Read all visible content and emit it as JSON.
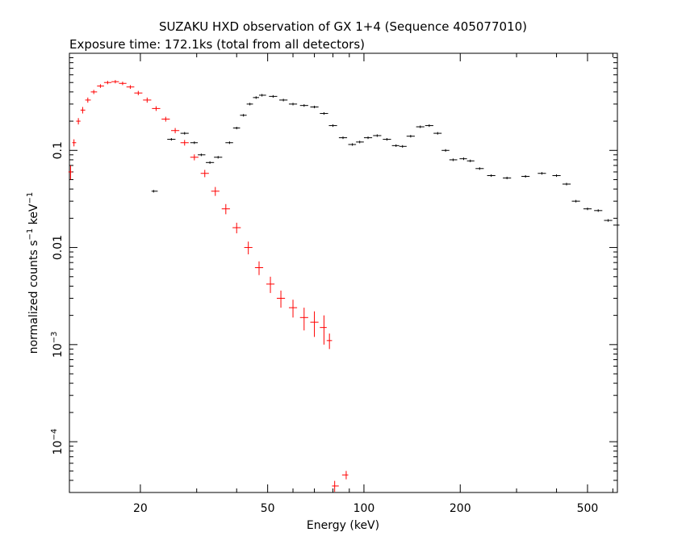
{
  "chart_data": {
    "type": "scatter",
    "title": "SUZAKU HXD observation of GX 1+4 (Sequence 405077010)",
    "subtitle": "Exposure time: 172.1ks (total from all detectors)",
    "xlabel": "Energy (keV)",
    "ylabel_parts": {
      "base": "normalized counts s",
      "exp1": "−1",
      "mid": " keV",
      "exp2": "−1"
    },
    "x_scale": "log",
    "y_scale": "log",
    "xlim": [
      12,
      620
    ],
    "ylim": [
      3e-05,
      1.0
    ],
    "grid": false,
    "x_ticks": [
      {
        "value": 20,
        "label": "20"
      },
      {
        "value": 50,
        "label": "50"
      },
      {
        "value": 100,
        "label": "100"
      },
      {
        "value": 200,
        "label": "200"
      },
      {
        "value": 500,
        "label": "500"
      }
    ],
    "y_ticks": [
      {
        "value": 0.1,
        "label": "0.1"
      },
      {
        "value": 0.01,
        "label": "0.01"
      },
      {
        "value": 0.001,
        "label": "10",
        "exp": "−3"
      },
      {
        "value": 0.0001,
        "label": "10",
        "exp": "−4"
      }
    ],
    "colors": {
      "pin": "#ff0000",
      "gso": "#000000"
    },
    "series": [
      {
        "color": "#ff0000",
        "points": [
          [
            12.1,
            0.06,
            0.01
          ],
          [
            12.4,
            0.12,
            0.01
          ],
          [
            12.8,
            0.2,
            0.015
          ],
          [
            13.2,
            0.26,
            0.02
          ],
          [
            13.7,
            0.33,
            0.02
          ],
          [
            14.3,
            0.4,
            0.02
          ],
          [
            15,
            0.46,
            0.02
          ],
          [
            15.8,
            0.5,
            0.02
          ],
          [
            16.7,
            0.51,
            0.02
          ],
          [
            17.6,
            0.49,
            0.02
          ],
          [
            18.6,
            0.45,
            0.02
          ],
          [
            19.7,
            0.39,
            0.02
          ],
          [
            21,
            0.33,
            0.02
          ],
          [
            22.4,
            0.27,
            0.015
          ],
          [
            24,
            0.21,
            0.012
          ],
          [
            25.7,
            0.16,
            0.01
          ],
          [
            27.5,
            0.12,
            0.008
          ],
          [
            29.5,
            0.085,
            0.006
          ],
          [
            31.8,
            0.058,
            0.005
          ],
          [
            34.3,
            0.038,
            0.004
          ],
          [
            37,
            0.025,
            0.003
          ],
          [
            40,
            0.016,
            0.002
          ],
          [
            43.5,
            0.01,
            0.0015
          ],
          [
            47,
            0.0062,
            0.001
          ],
          [
            51,
            0.0042,
            0.0008
          ],
          [
            55,
            0.003,
            0.0006
          ],
          [
            60,
            0.0024,
            0.0005
          ],
          [
            65,
            0.0019,
            0.0005
          ],
          [
            70,
            0.0017,
            0.0005
          ],
          [
            75,
            0.0015,
            0.0005
          ],
          [
            78,
            0.0011,
            0.0002
          ],
          [
            81,
            3.5e-05,
            4.5e-06
          ],
          [
            88,
            4.55e-05,
            4.5e-06
          ]
        ]
      },
      {
        "color": "#000000",
        "points": [
          [
            22,
            0.038
          ],
          [
            25,
            0.13
          ],
          [
            27.5,
            0.15
          ],
          [
            29.5,
            0.12
          ],
          [
            31,
            0.09
          ],
          [
            33,
            0.075
          ],
          [
            35,
            0.085
          ],
          [
            38,
            0.12
          ],
          [
            40,
            0.17
          ],
          [
            42,
            0.23
          ],
          [
            44,
            0.3
          ],
          [
            46,
            0.35
          ],
          [
            48,
            0.37
          ],
          [
            52,
            0.36
          ],
          [
            56,
            0.33
          ],
          [
            60,
            0.3
          ],
          [
            65,
            0.29
          ],
          [
            70,
            0.28
          ],
          [
            75,
            0.24
          ],
          [
            80,
            0.18
          ],
          [
            86,
            0.135
          ],
          [
            92,
            0.115
          ],
          [
            97,
            0.122
          ],
          [
            103,
            0.135
          ],
          [
            110,
            0.142
          ],
          [
            118,
            0.13
          ],
          [
            126,
            0.112
          ],
          [
            132,
            0.11
          ],
          [
            140,
            0.14
          ],
          [
            150,
            0.175
          ],
          [
            160,
            0.18
          ],
          [
            170,
            0.15
          ],
          [
            180,
            0.1
          ],
          [
            190,
            0.08
          ],
          [
            205,
            0.082
          ],
          [
            215,
            0.078
          ],
          [
            230,
            0.065
          ],
          [
            250,
            0.055
          ],
          [
            280,
            0.052
          ],
          [
            320,
            0.054
          ],
          [
            360,
            0.058
          ],
          [
            400,
            0.055
          ],
          [
            430,
            0.045
          ],
          [
            460,
            0.03
          ],
          [
            500,
            0.025
          ],
          [
            540,
            0.024
          ],
          [
            580,
            0.019
          ],
          [
            620,
            0.017
          ]
        ]
      }
    ]
  }
}
